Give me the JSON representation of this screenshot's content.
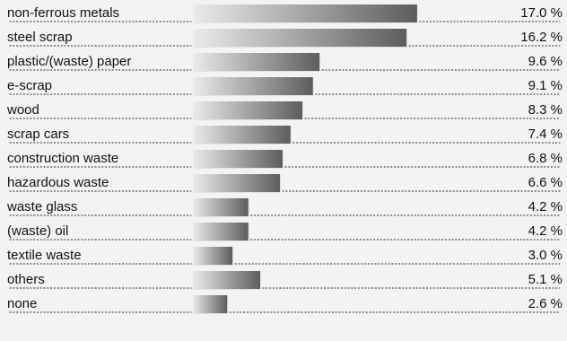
{
  "chart_data": {
    "type": "bar",
    "orientation": "horizontal",
    "categories": [
      "non-ferrous metals",
      "steel scrap",
      "plastic/(waste) paper",
      "e-scrap",
      "wood",
      "scrap cars",
      "construction waste",
      "hazardous waste",
      "waste glass",
      "(waste) oil",
      "textile waste",
      "others",
      "none"
    ],
    "values": [
      17.0,
      16.2,
      9.6,
      9.1,
      8.3,
      7.4,
      6.8,
      6.6,
      4.2,
      4.2,
      3.0,
      5.1,
      2.6
    ],
    "value_labels": [
      "17.0 %",
      "16.2 %",
      "9.6 %",
      "9.1 %",
      "8.3 %",
      "7.4 %",
      "6.8 %",
      "6.6 %",
      "4.2 %",
      "4.2 %",
      "3.0 %",
      "5.1 %",
      "2.6 %"
    ],
    "title": "",
    "xlabel": "",
    "ylabel": "",
    "xlim": [
      0,
      17.0
    ],
    "grid": false,
    "legend": "none"
  },
  "colors": {
    "background": "#f3f3f3",
    "bar_light": "#ebebeb",
    "bar_dark": "#5d5d5d",
    "shadow": "#a9a9a9",
    "text": "#111111",
    "leader": "#222222"
  }
}
